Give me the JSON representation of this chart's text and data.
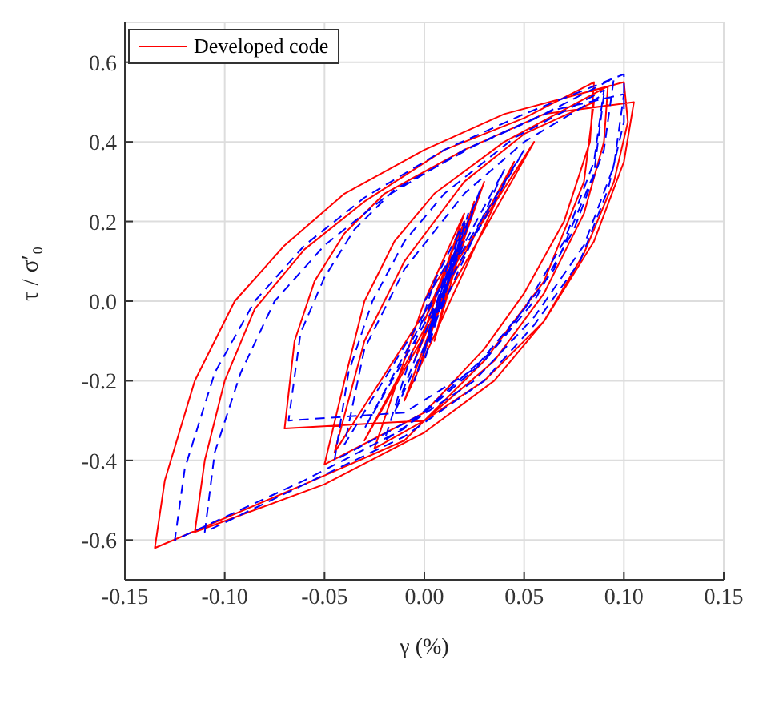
{
  "chart_data": {
    "type": "line",
    "xlabel": "γ (%)",
    "ylabel": "τ / σ′₀",
    "xlim": [
      -0.15,
      0.15
    ],
    "xticks": [
      -0.15,
      {
        "value": -0.1,
        "label": "-0.10"
      },
      -0.05,
      {
        "value": 0,
        "label": "0.00"
      },
      0.05,
      {
        "value": 0.1,
        "label": "0.10"
      },
      0.15
    ],
    "ylim": [
      -0.7,
      0.7
    ],
    "yticks": [
      -0.6,
      -0.4,
      -0.2,
      {
        "value": 0,
        "label": "0.0"
      },
      0.2,
      0.4,
      0.6
    ],
    "grid": true,
    "legend": "top left",
    "marker": "none",
    "series": [
      {
        "name": "Developed code",
        "color": "#ff0000",
        "line_style": "solid",
        "x": [
          0,
          0.015,
          0,
          0.02,
          0.005,
          0.025,
          -0.005,
          0.03,
          -0.01,
          0.045,
          -0.03,
          0.055,
          -0.045,
          -0.03,
          -0.01,
          0.02,
          0.05,
          0.085,
          0.08,
          0.06,
          0.03,
          -0.01,
          -0.06,
          -0.135,
          -0.13,
          -0.115,
          -0.095,
          -0.07,
          -0.04,
          0,
          0.04,
          0.1,
          0.102,
          0.095,
          0.08,
          0.06,
          0.035,
          0,
          -0.05,
          -0.115,
          -0.11,
          -0.1,
          -0.085,
          -0.06,
          -0.03,
          0.01,
          0.05,
          0.085,
          0.083,
          0.07,
          0.05,
          0.03,
          0,
          -0.05,
          -0.04,
          -0.03,
          -0.015,
          0.005,
          0.04,
          0.092,
          0.09,
          0.08,
          0.06,
          0.035,
          0,
          -0.07,
          -0.065,
          -0.055,
          -0.04,
          -0.02,
          0.02,
          0.06,
          0.105,
          0.1,
          0.085,
          0.06,
          0.03,
          0,
          -0.025,
          0,
          0.02,
          -0.005,
          0.02,
          0.005,
          0.015
        ],
        "values": [
          0,
          0.12,
          -0.05,
          0.2,
          -0.1,
          0.25,
          -0.2,
          0.3,
          -0.25,
          0.35,
          -0.35,
          0.4,
          -0.38,
          -0.1,
          0.1,
          0.3,
          0.42,
          0.5,
          0.3,
          0.05,
          -0.15,
          -0.35,
          -0.46,
          -0.62,
          -0.45,
          -0.2,
          0,
          0.14,
          0.27,
          0.38,
          0.47,
          0.55,
          0.45,
          0.3,
          0.12,
          -0.05,
          -0.2,
          -0.33,
          -0.46,
          -0.58,
          -0.4,
          -0.2,
          -0.02,
          0.13,
          0.25,
          0.38,
          0.46,
          0.55,
          0.4,
          0.2,
          0.02,
          -0.12,
          -0.28,
          -0.41,
          -0.2,
          0,
          0.15,
          0.27,
          0.4,
          0.54,
          0.4,
          0.22,
          0.02,
          -0.15,
          -0.3,
          -0.32,
          -0.1,
          0.05,
          0.17,
          0.27,
          0.38,
          0.47,
          0.5,
          0.35,
          0.15,
          -0.05,
          -0.2,
          -0.3,
          -0.37,
          0,
          0.22,
          -0.15,
          0.15,
          -0.05,
          0.1
        ]
      },
      {
        "color": "#0000ff",
        "line_style": "dashed",
        "x": [
          0,
          0.012,
          0.002,
          0.018,
          0,
          0.022,
          -0.005,
          0.028,
          -0.015,
          0.04,
          -0.03,
          0.05,
          -0.04,
          -0.03,
          -0.01,
          0.02,
          0.05,
          0.09,
          0.085,
          0.065,
          0.035,
          -0.01,
          -0.06,
          -0.125,
          -0.12,
          -0.105,
          -0.085,
          -0.06,
          -0.03,
          0.01,
          0.05,
          0.1,
          0.1,
          0.092,
          0.078,
          0.055,
          0.03,
          -0.01,
          -0.06,
          -0.11,
          -0.105,
          -0.092,
          -0.075,
          -0.05,
          -0.02,
          0.02,
          0.06,
          0.095,
          0.09,
          0.075,
          0.055,
          0.03,
          0,
          -0.045,
          -0.038,
          -0.026,
          -0.01,
          0.01,
          0.045,
          0.09,
          0.085,
          0.07,
          0.05,
          0.025,
          -0.01,
          -0.068,
          -0.062,
          -0.05,
          -0.035,
          -0.015,
          0.025,
          0.065,
          0.1,
          0.095,
          0.08,
          0.055,
          0.025,
          -0.005,
          -0.02,
          0.005,
          0.02,
          0,
          0.018,
          0.008,
          0.014
        ],
        "values": [
          0,
          0.1,
          -0.08,
          0.18,
          -0.15,
          0.22,
          -0.2,
          0.28,
          -0.28,
          0.33,
          -0.32,
          0.38,
          -0.36,
          -0.12,
          0.08,
          0.27,
          0.4,
          0.52,
          0.32,
          0.08,
          -0.12,
          -0.32,
          -0.45,
          -0.6,
          -0.42,
          -0.18,
          0,
          0.14,
          0.26,
          0.38,
          0.47,
          0.57,
          0.45,
          0.28,
          0.1,
          -0.06,
          -0.2,
          -0.34,
          -0.46,
          -0.58,
          -0.38,
          -0.18,
          0,
          0.14,
          0.26,
          0.38,
          0.47,
          0.56,
          0.38,
          0.18,
          0,
          -0.15,
          -0.28,
          -0.4,
          -0.18,
          0,
          0.15,
          0.27,
          0.41,
          0.53,
          0.35,
          0.15,
          -0.02,
          -0.17,
          -0.28,
          -0.3,
          -0.08,
          0.06,
          0.18,
          0.28,
          0.39,
          0.48,
          0.52,
          0.34,
          0.14,
          -0.04,
          -0.2,
          -0.3,
          -0.35,
          0.05,
          0.2,
          -0.12,
          0.14,
          -0.02,
          0.08
        ]
      }
    ]
  }
}
